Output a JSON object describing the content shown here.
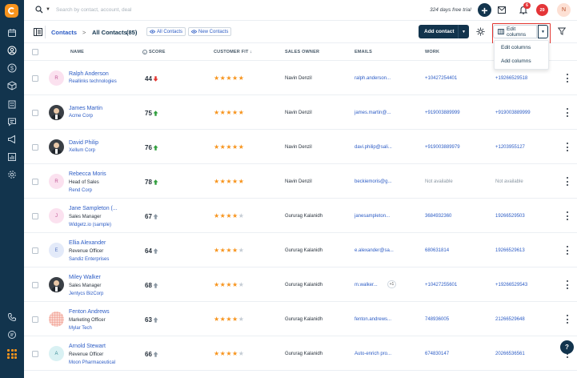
{
  "topbar": {
    "search_placeholder": "Search by contact, account, deal",
    "trial_text": "324 days free trial",
    "plus_label": "+",
    "notifications_count": "6",
    "alerts_count": "29",
    "user_initial": "N"
  },
  "header": {
    "breadcrumb_root": "Contacts",
    "breadcrumb_sep": ">",
    "page_title": "All Contacts",
    "count": "(85)",
    "view_all": "All Contacts",
    "view_new": "New Contacts",
    "add_contact": "Add contact",
    "edit_columns": "Edit columns"
  },
  "dropdown": {
    "items": [
      "Edit columns",
      "Add columns"
    ]
  },
  "columns": {
    "name": "NAME",
    "score": "SCORE",
    "customer_fit": "CUSTOMER FIT",
    "sales_owner": "SALES OWNER",
    "emails": "EMAILS",
    "work": "WORK"
  },
  "colors": {
    "sidebar": "#12344d",
    "accent": "#f7941d",
    "link": "#2c5cc5",
    "highlight": "#e3342f",
    "trend_up": "#2f9d3c",
    "trend_down": "#e3342f",
    "trend_neutral": "#8a97a3"
  },
  "rows": [
    {
      "initial": "R",
      "name": "Ralph Anderson",
      "title": "",
      "company": "Reallinks technologies",
      "score": "44",
      "trend": "down",
      "stars": 5,
      "owner": "Navin Denzil",
      "email": "ralph.anderson...",
      "email_extra": "",
      "work": "+10427254401",
      "mobile": "+19266529518"
    },
    {
      "initial": "",
      "name": "James Martin",
      "title": "",
      "company": "Acme Corp",
      "score": "75",
      "trend": "up",
      "stars": 5,
      "owner": "Navin Denzil",
      "email": "james.martin@...",
      "email_extra": "",
      "work": "+919003889999",
      "mobile": "+919003889999"
    },
    {
      "initial": "",
      "name": "David Philip",
      "title": "",
      "company": "Xellum Corp",
      "score": "76",
      "trend": "up",
      "stars": 5,
      "owner": "Navin Denzil",
      "email": "davi.philip@sali...",
      "email_extra": "",
      "work": "+919003889979",
      "mobile": "+1203955127"
    },
    {
      "initial": "R",
      "name": "Rebecca Moris",
      "title": "Head of Sales",
      "company": "Rend Corp",
      "score": "78",
      "trend": "up",
      "stars": 5,
      "owner": "Navin Denzil",
      "email": "beckiemoris@g...",
      "email_extra": "",
      "work": "Not available",
      "mobile": "Not available"
    },
    {
      "initial": "J",
      "name": "Jane Sampleton (...",
      "title": "Sales Manager",
      "company": "Widgetz.io (sample)",
      "score": "67",
      "trend": "neutral",
      "stars": 4,
      "owner": "Gururag Kalanidh",
      "email": "janesampleton...",
      "email_extra": "",
      "work": "3684932360",
      "mobile": "19266529503"
    },
    {
      "initial": "E",
      "name": "Ellia Alexander",
      "title": "Revenue Officer",
      "company": "Sandiz Enterprises",
      "score": "64",
      "trend": "neutral",
      "stars": 4,
      "owner": "Gururag Kalanidh",
      "email": "e.alexander@sa...",
      "email_extra": "",
      "work": "680631814",
      "mobile": "19266529613"
    },
    {
      "initial": "",
      "name": "Miley Walker",
      "title": "Sales Manager",
      "company": "Jentycs BizCorp",
      "score": "68",
      "trend": "neutral",
      "stars": 4,
      "owner": "Gururag Kalanidh",
      "email": "m.walker...",
      "email_extra": "+1",
      "work": "+10427255601",
      "mobile": "+19266529543"
    },
    {
      "initial": "",
      "name": "Fenton Andrews",
      "title": "Marketing Officer",
      "company": "Mylar Tech",
      "score": "63",
      "trend": "neutral",
      "stars": 4,
      "owner": "Gururag Kalanidh",
      "email": "fenton.andrews...",
      "email_extra": "",
      "work": "748936005",
      "mobile": "21266529648"
    },
    {
      "initial": "A",
      "name": "Arnold Stewart",
      "title": "Revenue Officer",
      "company": "Moon Pharmaceutical",
      "score": "66",
      "trend": "neutral",
      "stars": 4,
      "owner": "Gururag Kalanidh",
      "email": "Auto-enrich pro...",
      "email_extra": "",
      "work": "674830147",
      "mobile": "20266536561"
    }
  ],
  "help_label": "?"
}
